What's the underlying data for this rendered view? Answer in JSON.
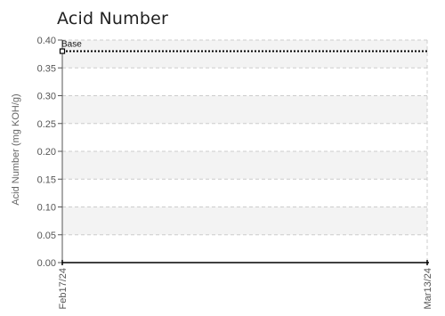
{
  "chart_data": {
    "type": "line",
    "title": "Acid Number",
    "ylabel": "Acid Number (mg KOH/g)",
    "xlabel": "",
    "ylim": [
      0,
      0.4
    ],
    "yticks": [
      "0.00",
      "0.05",
      "0.10",
      "0.15",
      "0.20",
      "0.25",
      "0.30",
      "0.35",
      "0.40"
    ],
    "x": [
      "Feb17/24",
      "Mar13/24"
    ],
    "series": [
      {
        "name": "Base",
        "values": [
          0.38,
          0.38
        ],
        "color": "#000000",
        "style": "dotted"
      }
    ],
    "grid": true,
    "colors": {
      "band": "#f3f3f3",
      "grid": "#cccccc",
      "axis": "#000000"
    }
  }
}
